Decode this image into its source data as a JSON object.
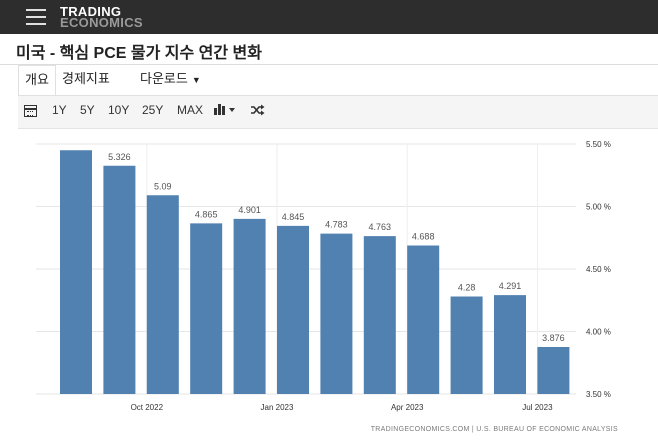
{
  "header": {
    "logo_line1": "TRADING",
    "logo_line2": "ECONOMICS",
    "menu_icon": "hamburger-menu-icon"
  },
  "page": {
    "title": "미국 - 핵심 PCE 물가 지수 연간 변화"
  },
  "tabs": [
    {
      "label": "개요"
    },
    {
      "label": "경제지표"
    },
    {
      "label": "다운로드"
    }
  ],
  "toolbar": {
    "calendar_icon": "calendar-icon",
    "ranges": [
      "1Y",
      "5Y",
      "10Y",
      "25Y",
      "MAX"
    ],
    "chart_type_icon": "bar-chart-icon",
    "shuffle_icon": "shuffle-icon"
  },
  "chart_data": {
    "type": "bar",
    "categories": [
      "2022-08",
      "2022-09",
      "2022-10",
      "2022-11",
      "2022-12",
      "2023-01",
      "2023-02",
      "2023-03",
      "2023-04",
      "2023-05",
      "2023-06",
      "2023-07"
    ],
    "values": [
      5.45,
      5.326,
      5.09,
      4.865,
      4.901,
      4.845,
      4.783,
      4.763,
      4.688,
      4.28,
      4.291,
      3.876
    ],
    "value_labels": [
      "",
      "5.326",
      "5.09",
      "4.865",
      "4.901",
      "4.845",
      "4.783",
      "4.763",
      "4.688",
      "4.28",
      "4.291",
      "3.876"
    ],
    "x_tick_labels": [
      {
        "label": "Oct 2022",
        "index": 1.5
      },
      {
        "label": "Jan 2023",
        "index": 4.5
      },
      {
        "label": "Apr 2023",
        "index": 7.5
      },
      {
        "label": "Jul 2023",
        "index": 10.5
      }
    ],
    "y_ticks": [
      3.5,
      4.0,
      4.5,
      5.0,
      5.5
    ],
    "y_tick_labels": [
      "3.50 %",
      "4.00 %",
      "4.50 %",
      "5.00 %",
      "5.50 %"
    ],
    "ylim": [
      3.5,
      5.5
    ],
    "bar_color": "#5081b1",
    "grid": true,
    "source": "TRADINGECONOMICS.COM  |  U.S. BUREAU OF ECONOMIC ANALYSIS"
  }
}
